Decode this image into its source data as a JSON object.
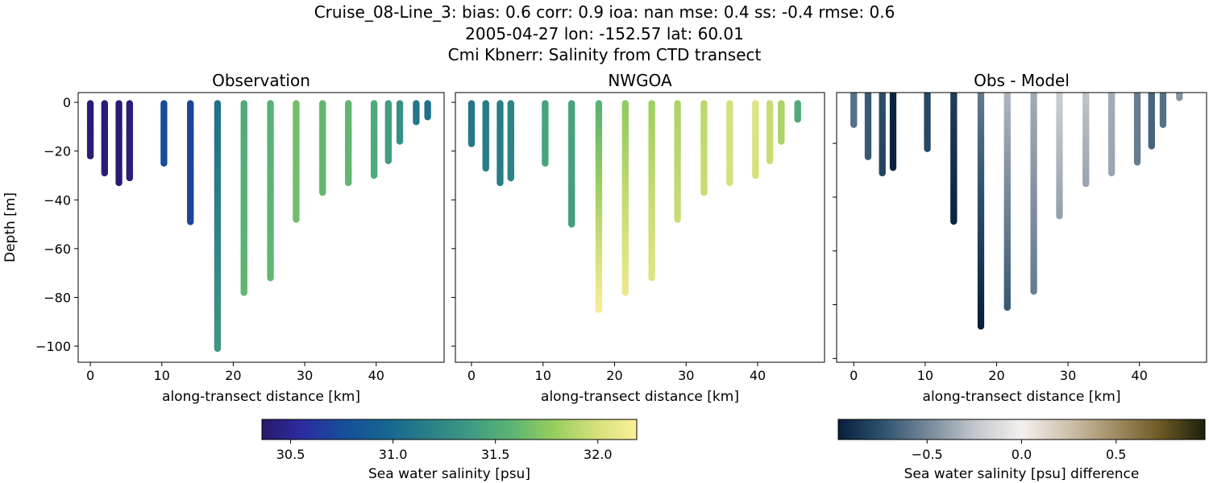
{
  "title_lines": [
    "Cruise_08-Line_3: bias: 0.6  corr: 0.9  ioa: nan  mse: 0.4  ss: -0.4  rmse: 0.6",
    "2005-04-27 lon: -152.57 lat: 60.01",
    "Cmi Kbnerr: Salinity from CTD transect"
  ],
  "chart_data": [
    {
      "type": "scatter",
      "title": "Observation",
      "xlabel": "along-transect distance [km]",
      "ylabel": "Depth [m]",
      "xlim": [
        -1.7,
        49.5
      ],
      "ylim": [
        -106.6,
        4
      ],
      "xticks": [
        0,
        10,
        20,
        30,
        40
      ],
      "yticks": [
        0,
        -20,
        -40,
        -60,
        -80,
        -100
      ],
      "ytick_labels_shown": true,
      "colormap": "salinity",
      "stations": [
        {
          "x": 0,
          "depth": 22,
          "value_surface": 30.4,
          "value_bottom": 30.4
        },
        {
          "x": 2,
          "depth": 29,
          "value_surface": 30.4,
          "value_bottom": 30.4
        },
        {
          "x": 4,
          "depth": 33,
          "value_surface": 30.4,
          "value_bottom": 30.4
        },
        {
          "x": 5.5,
          "depth": 31,
          "value_surface": 30.42,
          "value_bottom": 30.42
        },
        {
          "x": 10.3,
          "depth": 25,
          "value_surface": 30.75,
          "value_bottom": 30.75
        },
        {
          "x": 14,
          "depth": 49,
          "value_surface": 30.7,
          "value_bottom": 30.7
        },
        {
          "x": 17.8,
          "depth": 101,
          "value_surface": 31.05,
          "value_bottom": 31.35
        },
        {
          "x": 21.5,
          "depth": 78,
          "value_surface": 31.5,
          "value_bottom": 31.6
        },
        {
          "x": 25.2,
          "depth": 72,
          "value_surface": 31.55,
          "value_bottom": 31.6
        },
        {
          "x": 28.8,
          "depth": 48,
          "value_surface": 31.65,
          "value_bottom": 31.65
        },
        {
          "x": 32.5,
          "depth": 37,
          "value_surface": 31.6,
          "value_bottom": 31.6
        },
        {
          "x": 36.1,
          "depth": 33,
          "value_surface": 31.6,
          "value_bottom": 31.6
        },
        {
          "x": 39.7,
          "depth": 30,
          "value_surface": 31.5,
          "value_bottom": 31.5
        },
        {
          "x": 41.7,
          "depth": 24,
          "value_surface": 31.4,
          "value_bottom": 31.4
        },
        {
          "x": 43.3,
          "depth": 16,
          "value_surface": 31.3,
          "value_bottom": 31.3
        },
        {
          "x": 45.6,
          "depth": 8,
          "value_surface": 31.1,
          "value_bottom": 31.1
        },
        {
          "x": 47.2,
          "depth": 6,
          "value_surface": 31.05,
          "value_bottom": 31.05
        }
      ]
    },
    {
      "type": "scatter",
      "title": "NWGOA",
      "xlabel": "along-transect distance [km]",
      "ylabel": "",
      "xlim": [
        -2.25,
        49.35
      ],
      "ylim": [
        -106.6,
        4
      ],
      "xticks": [
        0,
        10,
        20,
        30,
        40
      ],
      "yticks": [
        0,
        -20,
        -40,
        -60,
        -80,
        -100
      ],
      "ytick_labels_shown": false,
      "colormap": "salinity",
      "stations": [
        {
          "x": 0,
          "depth": 17,
          "value_surface": 31.1,
          "value_bottom": 31.1
        },
        {
          "x": 2,
          "depth": 27,
          "value_surface": 31.15,
          "value_bottom": 31.15
        },
        {
          "x": 4,
          "depth": 33,
          "value_surface": 31.15,
          "value_bottom": 31.15
        },
        {
          "x": 5.5,
          "depth": 31,
          "value_surface": 31.2,
          "value_bottom": 31.2
        },
        {
          "x": 10.3,
          "depth": 25,
          "value_surface": 31.45,
          "value_bottom": 31.45
        },
        {
          "x": 14,
          "depth": 50,
          "value_surface": 31.45,
          "value_bottom": 31.4
        },
        {
          "x": 17.8,
          "depth": 85,
          "value_surface": 31.55,
          "value_bottom": 32.15
        },
        {
          "x": 21.5,
          "depth": 78,
          "value_surface": 31.75,
          "value_bottom": 32.1
        },
        {
          "x": 25.2,
          "depth": 72,
          "value_surface": 31.8,
          "value_bottom": 32.05
        },
        {
          "x": 28.8,
          "depth": 48,
          "value_surface": 31.85,
          "value_bottom": 31.95
        },
        {
          "x": 32.5,
          "depth": 37,
          "value_surface": 31.9,
          "value_bottom": 31.95
        },
        {
          "x": 36.1,
          "depth": 33,
          "value_surface": 32.0,
          "value_bottom": 32.0
        },
        {
          "x": 39.7,
          "depth": 30,
          "value_surface": 32.05,
          "value_bottom": 32.0
        },
        {
          "x": 41.7,
          "depth": 24,
          "value_surface": 31.95,
          "value_bottom": 31.95
        },
        {
          "x": 43.3,
          "depth": 16,
          "value_surface": 31.85,
          "value_bottom": 31.85
        },
        {
          "x": 45.6,
          "depth": 7,
          "value_surface": 31.5,
          "value_bottom": 31.5
        }
      ]
    },
    {
      "type": "scatter",
      "title": "Obs - Model",
      "xlabel": "along-transect distance [km]",
      "ylabel": "",
      "xlim": [
        -2.4,
        49.4
      ],
      "ylim": [
        -101.4,
        -1.1
      ],
      "xticks": [
        0,
        10,
        20,
        30,
        40
      ],
      "yticks": [
        -20,
        -40,
        -60,
        -80,
        -100
      ],
      "ytick_labels_shown": false,
      "colormap": "difference",
      "stations": [
        {
          "x": 0,
          "depth": 13,
          "value_surface": -0.6,
          "value_bottom": -0.6
        },
        {
          "x": 2,
          "depth": 25,
          "value_surface": -0.7,
          "value_bottom": -0.7
        },
        {
          "x": 4,
          "depth": 31,
          "value_surface": -0.75,
          "value_bottom": -0.8
        },
        {
          "x": 5.5,
          "depth": 29,
          "value_surface": -0.95,
          "value_bottom": -0.95
        },
        {
          "x": 10.3,
          "depth": 22,
          "value_surface": -0.78,
          "value_bottom": -0.78
        },
        {
          "x": 14,
          "depth": 49,
          "value_surface": -0.82,
          "value_bottom": -0.95
        },
        {
          "x": 17.8,
          "depth": 88,
          "value_surface": -0.55,
          "value_bottom": -0.97
        },
        {
          "x": 21.5,
          "depth": 81,
          "value_surface": -0.3,
          "value_bottom": -0.7
        },
        {
          "x": 25.2,
          "depth": 75,
          "value_surface": -0.35,
          "value_bottom": -0.55
        },
        {
          "x": 28.8,
          "depth": 47,
          "value_surface": -0.2,
          "value_bottom": -0.4
        },
        {
          "x": 32.5,
          "depth": 35,
          "value_surface": -0.25,
          "value_bottom": -0.38
        },
        {
          "x": 36.1,
          "depth": 31,
          "value_surface": -0.35,
          "value_bottom": -0.38
        },
        {
          "x": 39.7,
          "depth": 27,
          "value_surface": -0.55,
          "value_bottom": -0.55
        },
        {
          "x": 41.7,
          "depth": 21,
          "value_surface": -0.65,
          "value_bottom": -0.65
        },
        {
          "x": 43.3,
          "depth": 13,
          "value_surface": -0.6,
          "value_bottom": -0.6
        },
        {
          "x": 45.6,
          "depth": 3,
          "value_surface": -0.45,
          "value_bottom": -0.45
        }
      ]
    }
  ],
  "colorbars": {
    "salinity": {
      "label": "Sea water salinity [psu]",
      "range": [
        30.36,
        32.19
      ],
      "ticks": [
        30.5,
        31.0,
        31.5,
        32.0
      ],
      "tick_labels": [
        "30.5",
        "31.0",
        "31.5",
        "32.0"
      ],
      "colors": [
        "#2a186c",
        "#2b2da0",
        "#15509a",
        "#176690",
        "#2a8088",
        "#3f9a83",
        "#5cb473",
        "#98cd5e",
        "#d3e07a",
        "#fdef9a"
      ]
    },
    "difference": {
      "label": "Sea water salinity [psu] difference",
      "range": [
        -0.97,
        0.97
      ],
      "ticks": [
        -0.5,
        0.0,
        0.5
      ],
      "tick_labels": [
        "−0.5",
        "0.0",
        "0.5"
      ],
      "colors": [
        "#071f3c",
        "#2f5470",
        "#7a8b9c",
        "#c3c8cd",
        "#f4f0ee",
        "#cfc2ae",
        "#a38f66",
        "#6f5a24",
        "#1b200c"
      ]
    }
  }
}
